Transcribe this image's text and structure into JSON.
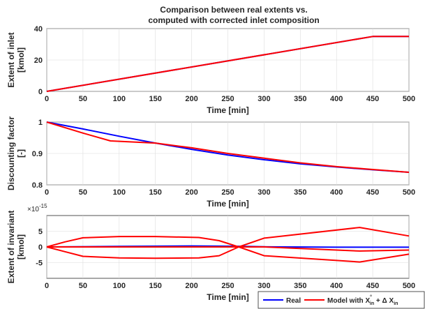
{
  "chart_data": [
    {
      "type": "line",
      "title": "Comparison between real extents vs. computed with corrected inlet composition",
      "title_lines": [
        "Comparison between real extents vs.",
        "computed with corrected inlet composition"
      ],
      "xlabel": "Time [min]",
      "ylabel_lines": [
        "Extent of inlet",
        "[kmol]"
      ],
      "xlim": [
        0,
        500
      ],
      "ylim": [
        0,
        40
      ],
      "xticks": [
        0,
        50,
        100,
        150,
        200,
        250,
        300,
        350,
        400,
        450,
        500
      ],
      "yticks": [
        0,
        20,
        40
      ],
      "grid": true,
      "series": [
        {
          "name": "Real",
          "color": "#0000ff",
          "points": [
            [
              0,
              0
            ],
            [
              450,
              35
            ],
            [
              500,
              35
            ]
          ]
        },
        {
          "name": "Model with X°in + Δ Xin",
          "color": "#ff0000",
          "points": [
            [
              0,
              0
            ],
            [
              450,
              35
            ],
            [
              500,
              35
            ]
          ]
        }
      ]
    },
    {
      "type": "line",
      "xlabel": "Time [min]",
      "ylabel_lines": [
        "Discounting factor",
        "[-]"
      ],
      "xlim": [
        0,
        500
      ],
      "ylim": [
        0.8,
        1.0
      ],
      "xticks": [
        0,
        50,
        100,
        150,
        200,
        250,
        300,
        350,
        400,
        450,
        500
      ],
      "yticks": [
        0.8,
        0.9,
        1.0
      ],
      "ytick_labels": [
        "0.8",
        "0.9",
        "1"
      ],
      "grid": true,
      "series": [
        {
          "name": "Real",
          "color": "#0000ff",
          "points": [
            [
              0,
              1.0
            ],
            [
              50,
              0.978
            ],
            [
              100,
              0.955
            ],
            [
              150,
              0.933
            ],
            [
              200,
              0.913
            ],
            [
              250,
              0.895
            ],
            [
              300,
              0.88
            ],
            [
              350,
              0.867
            ],
            [
              400,
              0.857
            ],
            [
              450,
              0.848
            ],
            [
              500,
              0.84
            ]
          ]
        },
        {
          "name": "Model with X°in + Δ Xin",
          "color": "#ff0000",
          "points": [
            [
              0,
              1.0
            ],
            [
              50,
              0.965
            ],
            [
              88,
              0.94
            ],
            [
              150,
              0.933
            ],
            [
              200,
              0.918
            ],
            [
              250,
              0.9
            ],
            [
              300,
              0.885
            ],
            [
              350,
              0.87
            ],
            [
              400,
              0.858
            ],
            [
              450,
              0.849
            ],
            [
              500,
              0.84
            ]
          ]
        }
      ]
    },
    {
      "type": "line",
      "xlabel": "Time [min]",
      "ylabel_lines": [
        "Extent of invariant",
        "[kmol]"
      ],
      "y_exponent": "×10",
      "y_exponent_power": "-15",
      "xlim": [
        0,
        500
      ],
      "ylim": [
        -10,
        10
      ],
      "xticks": [
        0,
        50,
        100,
        150,
        200,
        250,
        300,
        350,
        400,
        450,
        500
      ],
      "yticks": [
        -5,
        0,
        5
      ],
      "grid": true,
      "series": [
        {
          "name": "Real",
          "color": "#0000ff",
          "points": [
            [
              0,
              0
            ],
            [
              100,
              0.15
            ],
            [
              200,
              0.3
            ],
            [
              265,
              0.2
            ],
            [
              300,
              0.05
            ],
            [
              400,
              -0.1
            ],
            [
              500,
              -0.1
            ]
          ]
        },
        {
          "name": "Model with X°in + Δ Xin (upper)",
          "color": "#ff0000",
          "points": [
            [
              0,
              0
            ],
            [
              25,
              1.6
            ],
            [
              50,
              2.9
            ],
            [
              100,
              3.3
            ],
            [
              150,
              3.3
            ],
            [
              210,
              3.0
            ],
            [
              238,
              2.0
            ],
            [
              265,
              0
            ],
            [
              300,
              2.8
            ],
            [
              432,
              6.2
            ],
            [
              500,
              3.5
            ]
          ]
        },
        {
          "name": "Model with X°in + Δ Xin (lower)",
          "color": "#ff0000",
          "points": [
            [
              0,
              0
            ],
            [
              25,
              -1.5
            ],
            [
              50,
              -3.0
            ],
            [
              100,
              -3.5
            ],
            [
              150,
              -3.6
            ],
            [
              210,
              -3.5
            ],
            [
              238,
              -2.8
            ],
            [
              265,
              0
            ],
            [
              300,
              -2.8
            ],
            [
              432,
              -4.8
            ],
            [
              500,
              -2.3
            ]
          ]
        },
        {
          "name": "Model with X°in + Δ Xin (mid)",
          "color": "#ff0000",
          "points": [
            [
              0,
              0
            ],
            [
              265,
              0
            ],
            [
              300,
              0
            ],
            [
              432,
              -1.3
            ],
            [
              500,
              -1.0
            ]
          ]
        }
      ]
    }
  ],
  "legend": {
    "real_label": "Real",
    "model_label_main": "Model with X",
    "model_label_sup": "°",
    "model_label_sub": "in",
    "model_label_mid": " + Δ X",
    "model_label_sub2": "in"
  }
}
